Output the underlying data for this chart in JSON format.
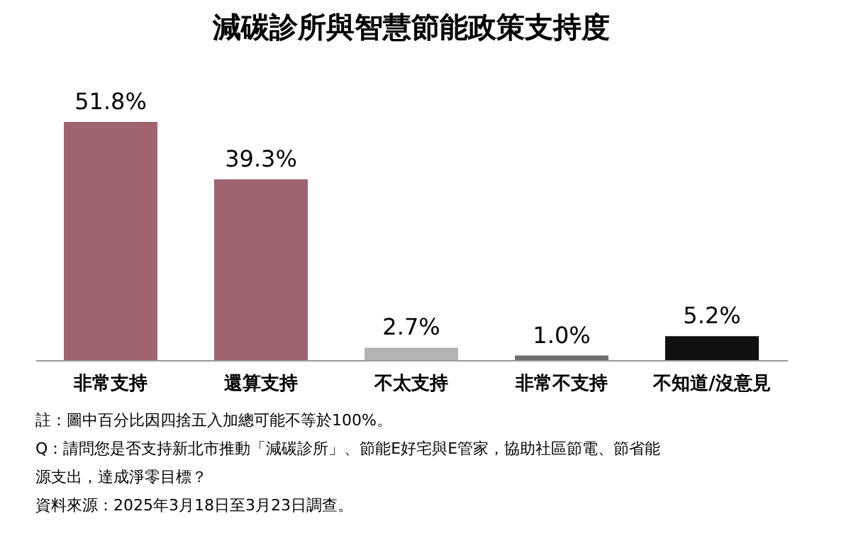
{
  "chart_data": {
    "type": "bar",
    "title": "減碳診所與智慧節能政策支持度",
    "categories": [
      "非常支持",
      "還算支持",
      "不太支持",
      "非常不支持",
      "不知道/沒意見"
    ],
    "values": [
      51.8,
      39.3,
      2.7,
      1.0,
      5.2
    ],
    "colors": [
      "#9e6470",
      "#9e6470",
      "#b3b3b3",
      "#6e6e6e",
      "#111111"
    ],
    "value_labels": [
      "51.8%",
      "39.3%",
      "2.7%",
      "1.0%",
      "5.2%"
    ],
    "annotations": [
      "註：圖中百分比因四捨五入加總可能不等於100%。",
      "Q：請問您是否支持新北市推動「減碳診所」、節能E好宅與E管家，協助社區節電、節省能源支出，達成淨零目標？",
      "資料來源：2025年3月18日至3月23日調查。"
    ]
  }
}
